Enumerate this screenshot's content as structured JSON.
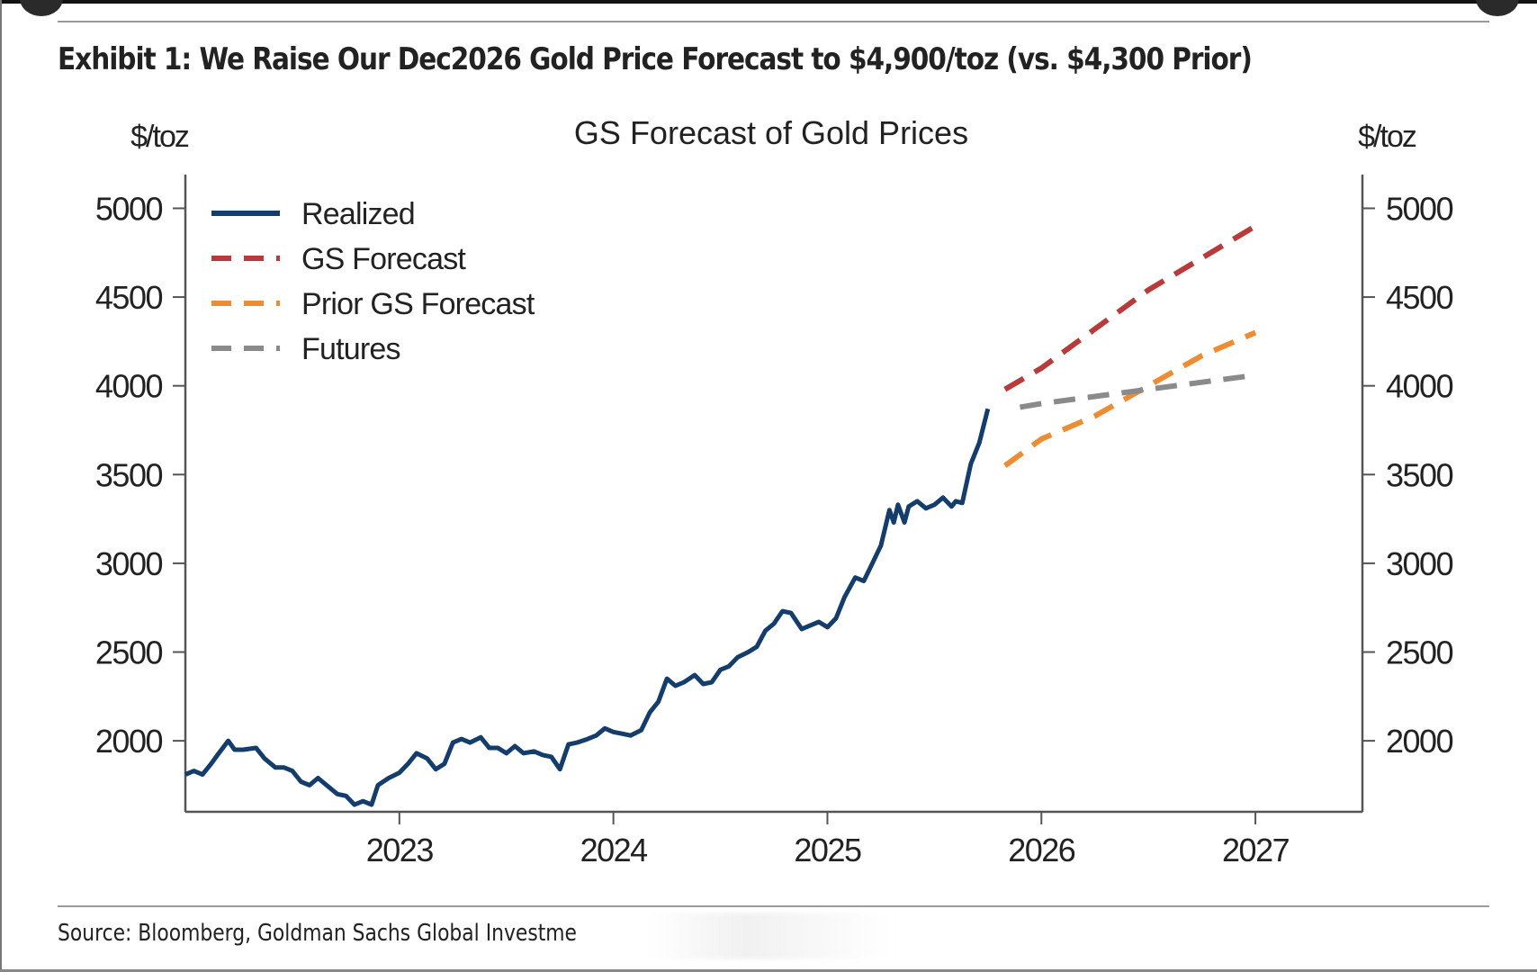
{
  "exhibit": {
    "title": "Exhibit 1: We Raise Our Dec2026 Gold Price Forecast to $4,900/toz (vs. $4,300 Prior)",
    "source": "Source: Bloomberg, Goldman Sachs Global Investme"
  },
  "chart_data": {
    "type": "line",
    "title": "GS Forecast of Gold Prices",
    "ylabel_left": "$/toz",
    "ylabel_right": "$/toz",
    "xlabel": "",
    "xlim": [
      2022.0,
      2027.5
    ],
    "ylim": [
      1600,
      5190
    ],
    "yticks": [
      2000,
      2500,
      3000,
      3500,
      4000,
      4500,
      5000
    ],
    "xticks": [
      2023,
      2024,
      2025,
      2026,
      2027
    ],
    "grid": false,
    "legend": {
      "placement": "top-left",
      "entries": [
        "Realized",
        "GS Forecast",
        "Prior GS Forecast",
        "Futures"
      ]
    },
    "series": [
      {
        "name": "Realized",
        "style": "solid",
        "color": "#143d6b",
        "x": [
          2022.0,
          2022.04,
          2022.08,
          2022.12,
          2022.15,
          2022.2,
          2022.23,
          2022.27,
          2022.33,
          2022.37,
          2022.42,
          2022.46,
          2022.5,
          2022.54,
          2022.58,
          2022.62,
          2022.67,
          2022.71,
          2022.75,
          2022.79,
          2022.83,
          2022.87,
          2022.9,
          2022.95,
          2023.0,
          2023.04,
          2023.08,
          2023.13,
          2023.17,
          2023.21,
          2023.25,
          2023.29,
          2023.33,
          2023.38,
          2023.42,
          2023.46,
          2023.5,
          2023.54,
          2023.58,
          2023.63,
          2023.67,
          2023.71,
          2023.75,
          2023.79,
          2023.83,
          2023.88,
          2023.92,
          2023.96,
          2024.0,
          2024.04,
          2024.08,
          2024.13,
          2024.17,
          2024.21,
          2024.25,
          2024.29,
          2024.33,
          2024.38,
          2024.42,
          2024.46,
          2024.5,
          2024.54,
          2024.58,
          2024.63,
          2024.67,
          2024.71,
          2024.75,
          2024.79,
          2024.83,
          2024.88,
          2024.92,
          2024.96,
          2025.0,
          2025.04,
          2025.08,
          2025.13,
          2025.17,
          2025.21,
          2025.25,
          2025.29,
          2025.31,
          2025.33,
          2025.36,
          2025.38,
          2025.42,
          2025.46,
          2025.5,
          2025.54,
          2025.58,
          2025.6,
          2025.63,
          2025.67,
          2025.71,
          2025.75
        ],
        "values": [
          1810,
          1830,
          1810,
          1870,
          1920,
          2000,
          1950,
          1950,
          1960,
          1900,
          1850,
          1850,
          1830,
          1770,
          1750,
          1790,
          1740,
          1700,
          1690,
          1640,
          1660,
          1640,
          1750,
          1790,
          1820,
          1870,
          1930,
          1900,
          1840,
          1870,
          1990,
          2010,
          1990,
          2020,
          1960,
          1960,
          1930,
          1970,
          1930,
          1940,
          1920,
          1910,
          1840,
          1980,
          1990,
          2010,
          2030,
          2070,
          2050,
          2040,
          2030,
          2060,
          2160,
          2220,
          2350,
          2310,
          2330,
          2370,
          2320,
          2330,
          2400,
          2420,
          2470,
          2500,
          2530,
          2620,
          2660,
          2730,
          2720,
          2630,
          2650,
          2670,
          2640,
          2690,
          2810,
          2920,
          2900,
          3000,
          3100,
          3300,
          3230,
          3330,
          3230,
          3320,
          3350,
          3310,
          3330,
          3370,
          3320,
          3350,
          3340,
          3560,
          3680,
          3870
        ]
      },
      {
        "name": "GS Forecast",
        "style": "dashed",
        "color": "#b83a3a",
        "x": [
          2025.83,
          2026.0,
          2026.25,
          2026.5,
          2026.75,
          2027.0
        ],
        "values": [
          3980,
          4100,
          4320,
          4540,
          4720,
          4900
        ]
      },
      {
        "name": "Prior GS Forecast",
        "style": "dashed",
        "color": "#ee8c33",
        "x": [
          2025.83,
          2026.0,
          2026.25,
          2026.5,
          2026.75,
          2027.0
        ],
        "values": [
          3550,
          3700,
          3830,
          4000,
          4170,
          4300
        ]
      },
      {
        "name": "Futures",
        "style": "dashed",
        "color": "#8a8a8a",
        "x": [
          2025.9,
          2026.0,
          2026.25,
          2026.5,
          2026.75,
          2027.0
        ],
        "values": [
          3880,
          3900,
          3940,
          3980,
          4020,
          4060
        ]
      }
    ]
  }
}
